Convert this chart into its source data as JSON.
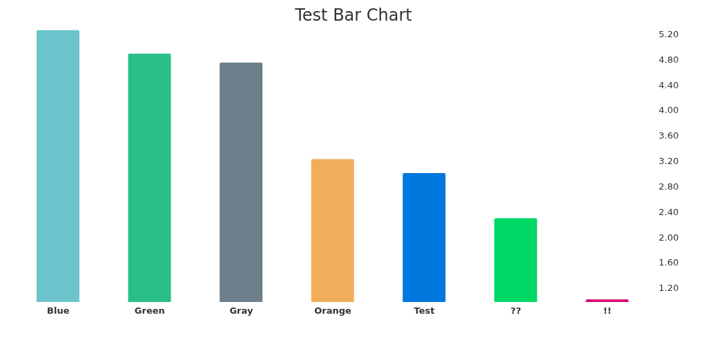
{
  "chart_data": {
    "type": "bar",
    "title": "Test Bar Chart",
    "categories": [
      "Blue",
      "Green",
      "Gray",
      "Orange",
      "Test",
      "??",
      "!!"
    ],
    "values": [
      5.26,
      4.89,
      4.75,
      3.23,
      3.01,
      2.3,
      1.02
    ],
    "colors": [
      "#6cc3cb",
      "#2bbf88",
      "#6c7f8a",
      "#f0ae5c",
      "#0077dd",
      "#00d866",
      "#d8006f"
    ],
    "ylim": [
      0.98,
      5.3
    ],
    "yticks": [
      {
        "value": 1.2,
        "label": "1.20"
      },
      {
        "value": 1.6,
        "label": "1.60"
      },
      {
        "value": 2.0,
        "label": "2.00"
      },
      {
        "value": 2.4,
        "label": "2.40"
      },
      {
        "value": 2.8,
        "label": "2.80"
      },
      {
        "value": 3.2,
        "label": "3.20"
      },
      {
        "value": 3.6,
        "label": "3.60"
      },
      {
        "value": 4.0,
        "label": "4.00"
      },
      {
        "value": 4.4,
        "label": "4.40"
      },
      {
        "value": 4.8,
        "label": "4.80"
      },
      {
        "value": 5.2,
        "label": "5.20"
      }
    ],
    "grid": false,
    "legend": false
  }
}
